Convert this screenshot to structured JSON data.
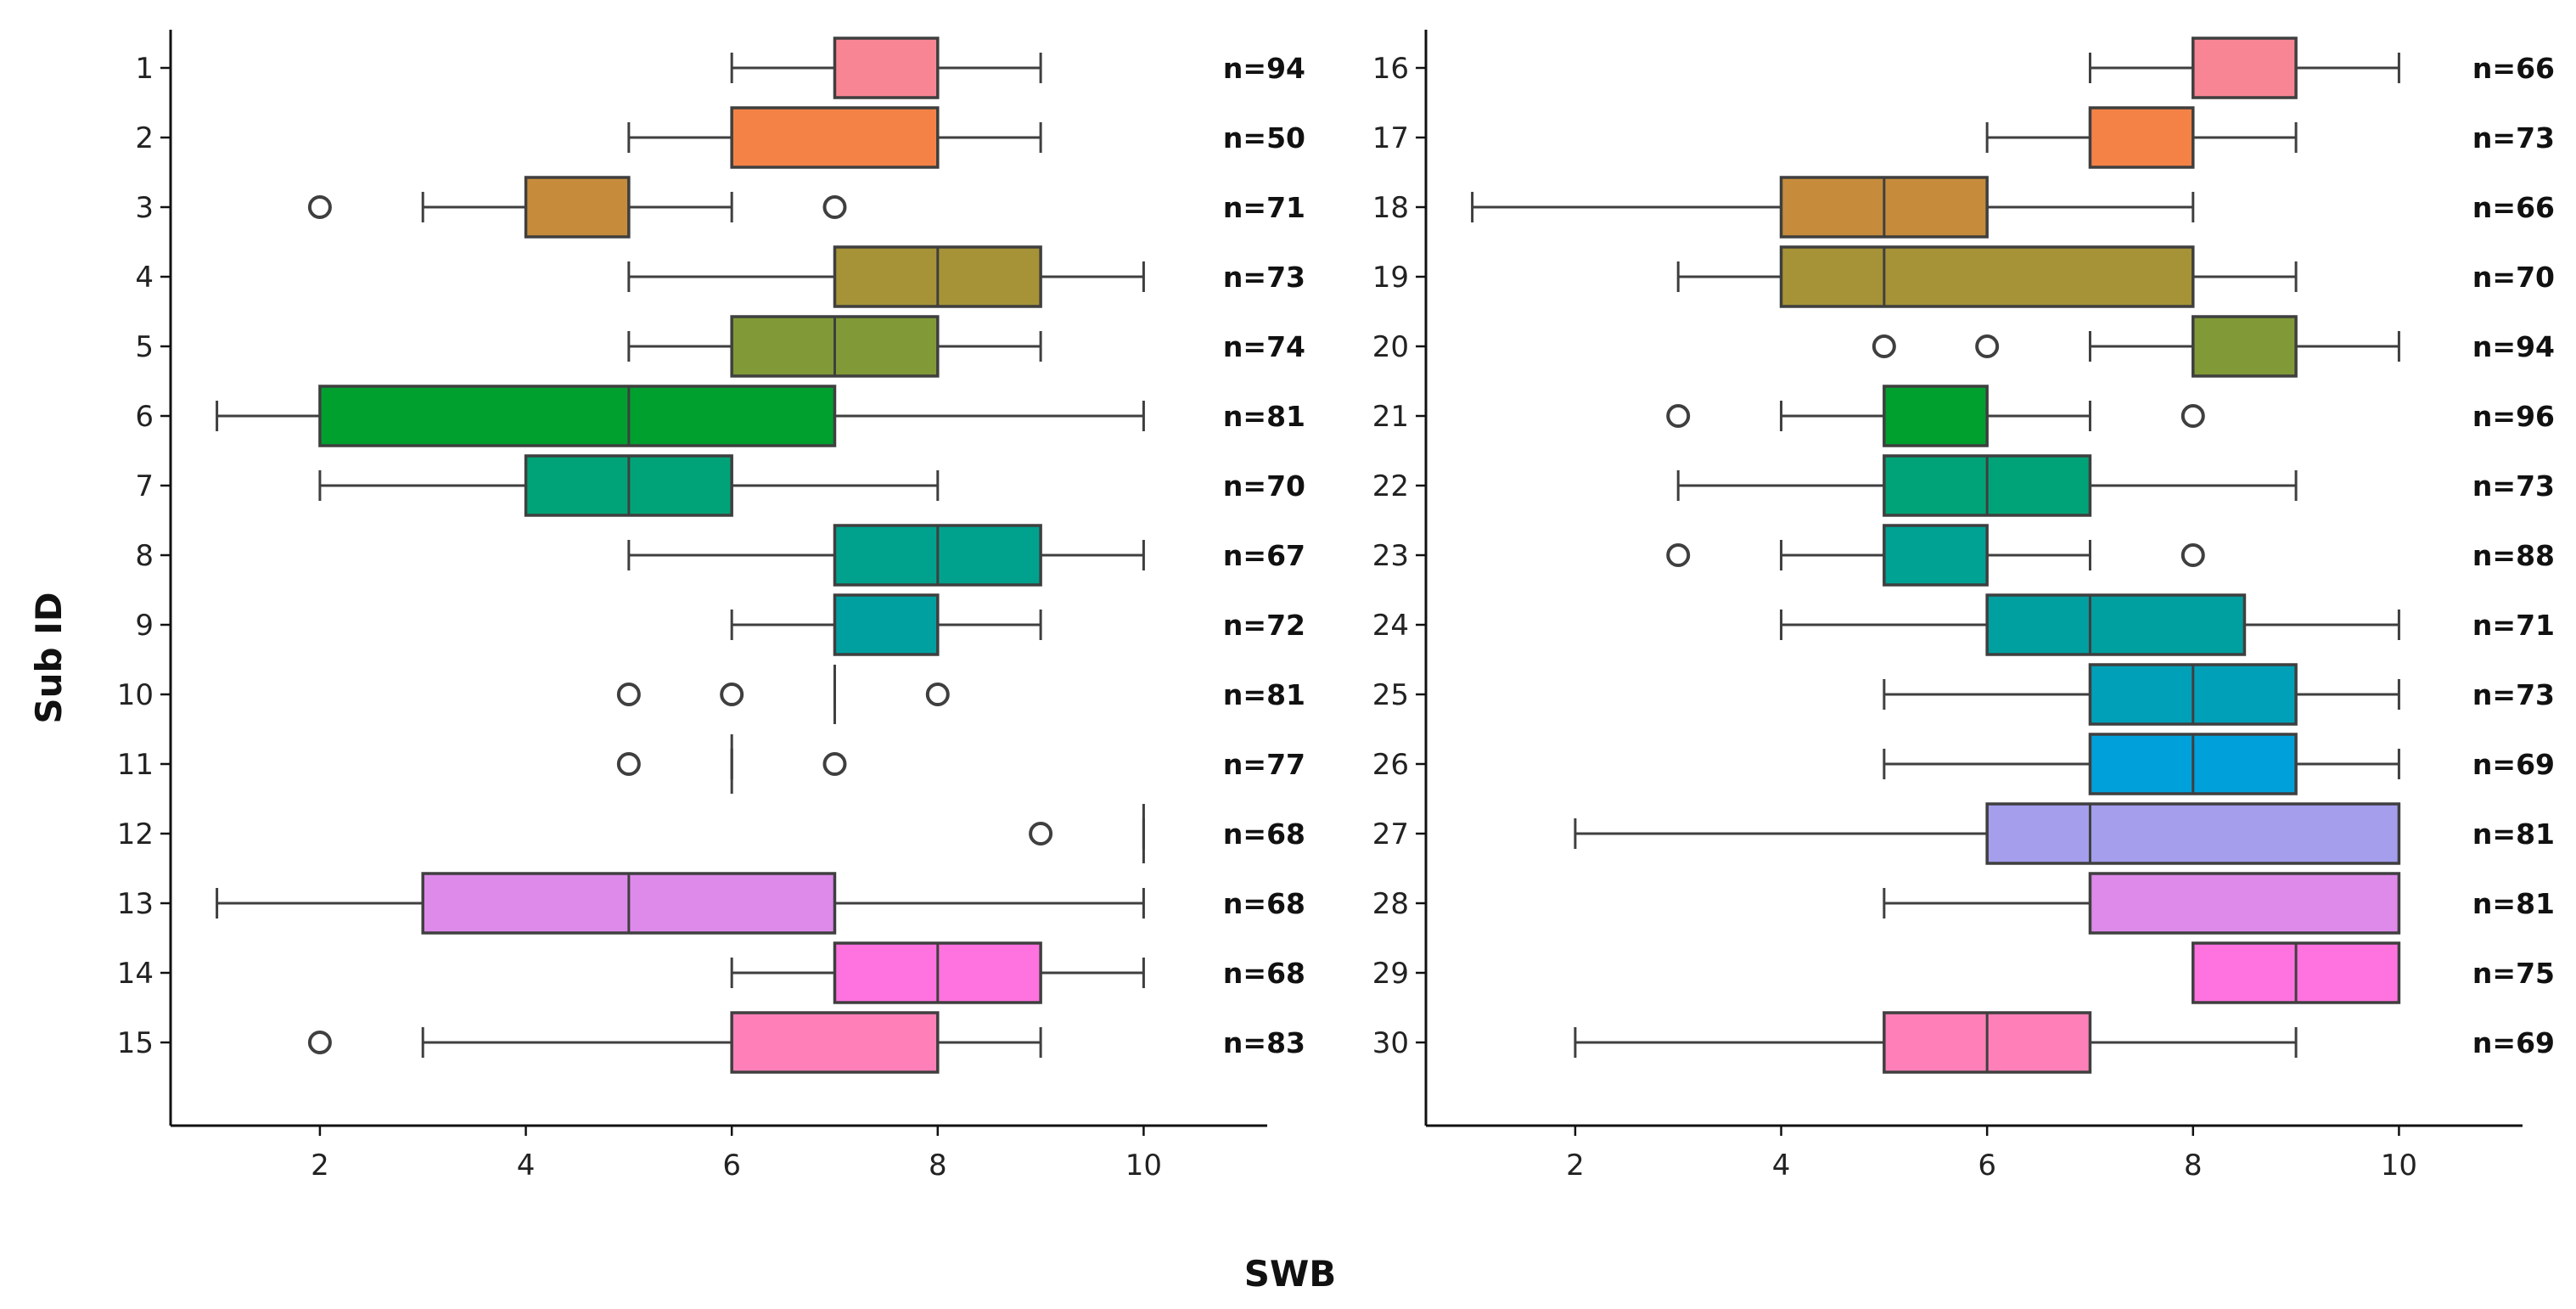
{
  "figure": {
    "xlabel": "SWB",
    "ylabel": "Sub ID",
    "line_color": "#3f3f3f"
  },
  "chart_data": [
    {
      "type": "boxplot",
      "orientation": "horizontal",
      "xlim": [
        0.55,
        11.2
      ],
      "xticks": [
        2,
        4,
        6,
        8,
        10
      ],
      "grid": false,
      "boxes": [
        {
          "id": "1",
          "n": "n=94",
          "whislo": 6,
          "q1": 7,
          "med": 7,
          "q3": 8,
          "whishi": 9,
          "fliers": [],
          "color": "#f88593"
        },
        {
          "id": "2",
          "n": "n=50",
          "whislo": 5,
          "q1": 6,
          "med": 8,
          "q3": 8,
          "whishi": 9,
          "fliers": [],
          "color": "#f48246"
        },
        {
          "id": "3",
          "n": "n=71",
          "whislo": 3,
          "q1": 4,
          "med": 5,
          "q3": 5,
          "whishi": 6,
          "fliers": [
            2,
            7
          ],
          "color": "#c68c3c"
        },
        {
          "id": "4",
          "n": "n=73",
          "whislo": 5,
          "q1": 7,
          "med": 8,
          "q3": 9,
          "whishi": 10,
          "fliers": [],
          "color": "#a69337"
        },
        {
          "id": "5",
          "n": "n=74",
          "whislo": 5,
          "q1": 6,
          "med": 7,
          "q3": 8,
          "whishi": 9,
          "fliers": [],
          "color": "#819a37"
        },
        {
          "id": "6",
          "n": "n=81",
          "whislo": 1,
          "q1": 2,
          "med": 5,
          "q3": 7,
          "whishi": 10,
          "fliers": [],
          "color": "#00a02f"
        },
        {
          "id": "7",
          "n": "n=70",
          "whislo": 2,
          "q1": 4,
          "med": 5,
          "q3": 6,
          "whishi": 8,
          "fliers": [],
          "color": "#00a377"
        },
        {
          "id": "8",
          "n": "n=67",
          "whislo": 5,
          "q1": 7,
          "med": 8,
          "q3": 9,
          "whishi": 10,
          "fliers": [],
          "color": "#00a28e"
        },
        {
          "id": "9",
          "n": "n=72",
          "whislo": 6,
          "q1": 7,
          "med": 7,
          "q3": 8,
          "whishi": 9,
          "fliers": [],
          "color": "#00a0a0"
        },
        {
          "id": "10",
          "n": "n=81",
          "whislo": 7,
          "q1": 7,
          "med": 7,
          "q3": 7,
          "whishi": 7,
          "fliers": [
            5,
            6,
            8
          ],
          "color": "#00a0b8"
        },
        {
          "id": "11",
          "n": "n=77",
          "whislo": 6,
          "q1": 6,
          "med": 6,
          "q3": 6,
          "whishi": 6,
          "fliers": [
            5,
            7
          ],
          "color": "#00a0da"
        },
        {
          "id": "12",
          "n": "n=68",
          "whislo": 10,
          "q1": 10,
          "med": 10,
          "q3": 10,
          "whishi": 10,
          "fliers": [
            9
          ],
          "color": "#a49eec"
        },
        {
          "id": "13",
          "n": "n=68",
          "whislo": 1,
          "q1": 3,
          "med": 5,
          "q3": 7,
          "whishi": 10,
          "fliers": [],
          "color": "#de8aea"
        },
        {
          "id": "14",
          "n": "n=68",
          "whislo": 6,
          "q1": 7,
          "med": 8,
          "q3": 9,
          "whishi": 10,
          "fliers": [],
          "color": "#ff73e0"
        },
        {
          "id": "15",
          "n": "n=83",
          "whislo": 3,
          "q1": 6,
          "med": 8,
          "q3": 8,
          "whishi": 9,
          "fliers": [
            2
          ],
          "color": "#ff80b8"
        }
      ]
    },
    {
      "type": "boxplot",
      "orientation": "horizontal",
      "xlim": [
        0.55,
        11.2
      ],
      "xticks": [
        2,
        4,
        6,
        8,
        10
      ],
      "grid": false,
      "boxes": [
        {
          "id": "16",
          "n": "n=66",
          "whislo": 7,
          "q1": 8,
          "med": 8,
          "q3": 9,
          "whishi": 10,
          "fliers": [],
          "color": "#f88593"
        },
        {
          "id": "17",
          "n": "n=73",
          "whislo": 6,
          "q1": 7,
          "med": 7,
          "q3": 8,
          "whishi": 9,
          "fliers": [],
          "color": "#f48246"
        },
        {
          "id": "18",
          "n": "n=66",
          "whislo": 1,
          "q1": 4,
          "med": 5,
          "q3": 6,
          "whishi": 8,
          "fliers": [],
          "color": "#c68c3c"
        },
        {
          "id": "19",
          "n": "n=70",
          "whislo": 3,
          "q1": 4,
          "med": 5,
          "q3": 8,
          "whishi": 9,
          "fliers": [],
          "color": "#a69337"
        },
        {
          "id": "20",
          "n": "n=94",
          "whislo": 7,
          "q1": 8,
          "med": 8,
          "q3": 9,
          "whishi": 10,
          "fliers": [
            5,
            6
          ],
          "color": "#819a37"
        },
        {
          "id": "21",
          "n": "n=96",
          "whislo": 4,
          "q1": 5,
          "med": 5,
          "q3": 6,
          "whishi": 7,
          "fliers": [
            3,
            8
          ],
          "color": "#00a02f"
        },
        {
          "id": "22",
          "n": "n=73",
          "whislo": 3,
          "q1": 5,
          "med": 6,
          "q3": 7,
          "whishi": 9,
          "fliers": [],
          "color": "#00a377"
        },
        {
          "id": "23",
          "n": "n=88",
          "whislo": 4,
          "q1": 5,
          "med": 5,
          "q3": 6,
          "whishi": 7,
          "fliers": [
            3,
            8
          ],
          "color": "#00a294"
        },
        {
          "id": "24",
          "n": "n=71",
          "whislo": 4,
          "q1": 6,
          "med": 7,
          "q3": 8.5,
          "whishi": 10,
          "fliers": [],
          "color": "#009fa0"
        },
        {
          "id": "25",
          "n": "n=73",
          "whislo": 5,
          "q1": 7,
          "med": 8,
          "q3": 9,
          "whishi": 10,
          "fliers": [],
          "color": "#00a0b8"
        },
        {
          "id": "26",
          "n": "n=69",
          "whislo": 5,
          "q1": 7,
          "med": 8,
          "q3": 9,
          "whishi": 10,
          "fliers": [],
          "color": "#00a0da"
        },
        {
          "id": "27",
          "n": "n=81",
          "whislo": 2,
          "q1": 6,
          "med": 7,
          "q3": 10,
          "whishi": 10,
          "fliers": [],
          "color": "#a49eec"
        },
        {
          "id": "28",
          "n": "n=81",
          "whislo": 5,
          "q1": 7,
          "med": 10,
          "q3": 10,
          "whishi": 10,
          "fliers": [],
          "color": "#de8aea"
        },
        {
          "id": "29",
          "n": "n=75",
          "whislo": 8,
          "q1": 8,
          "med": 9,
          "q3": 10,
          "whishi": 10,
          "fliers": [],
          "color": "#ff73e0"
        },
        {
          "id": "30",
          "n": "n=69",
          "whislo": 2,
          "q1": 5,
          "med": 6,
          "q3": 7,
          "whishi": 9,
          "fliers": [],
          "color": "#ff80b8"
        }
      ]
    }
  ]
}
